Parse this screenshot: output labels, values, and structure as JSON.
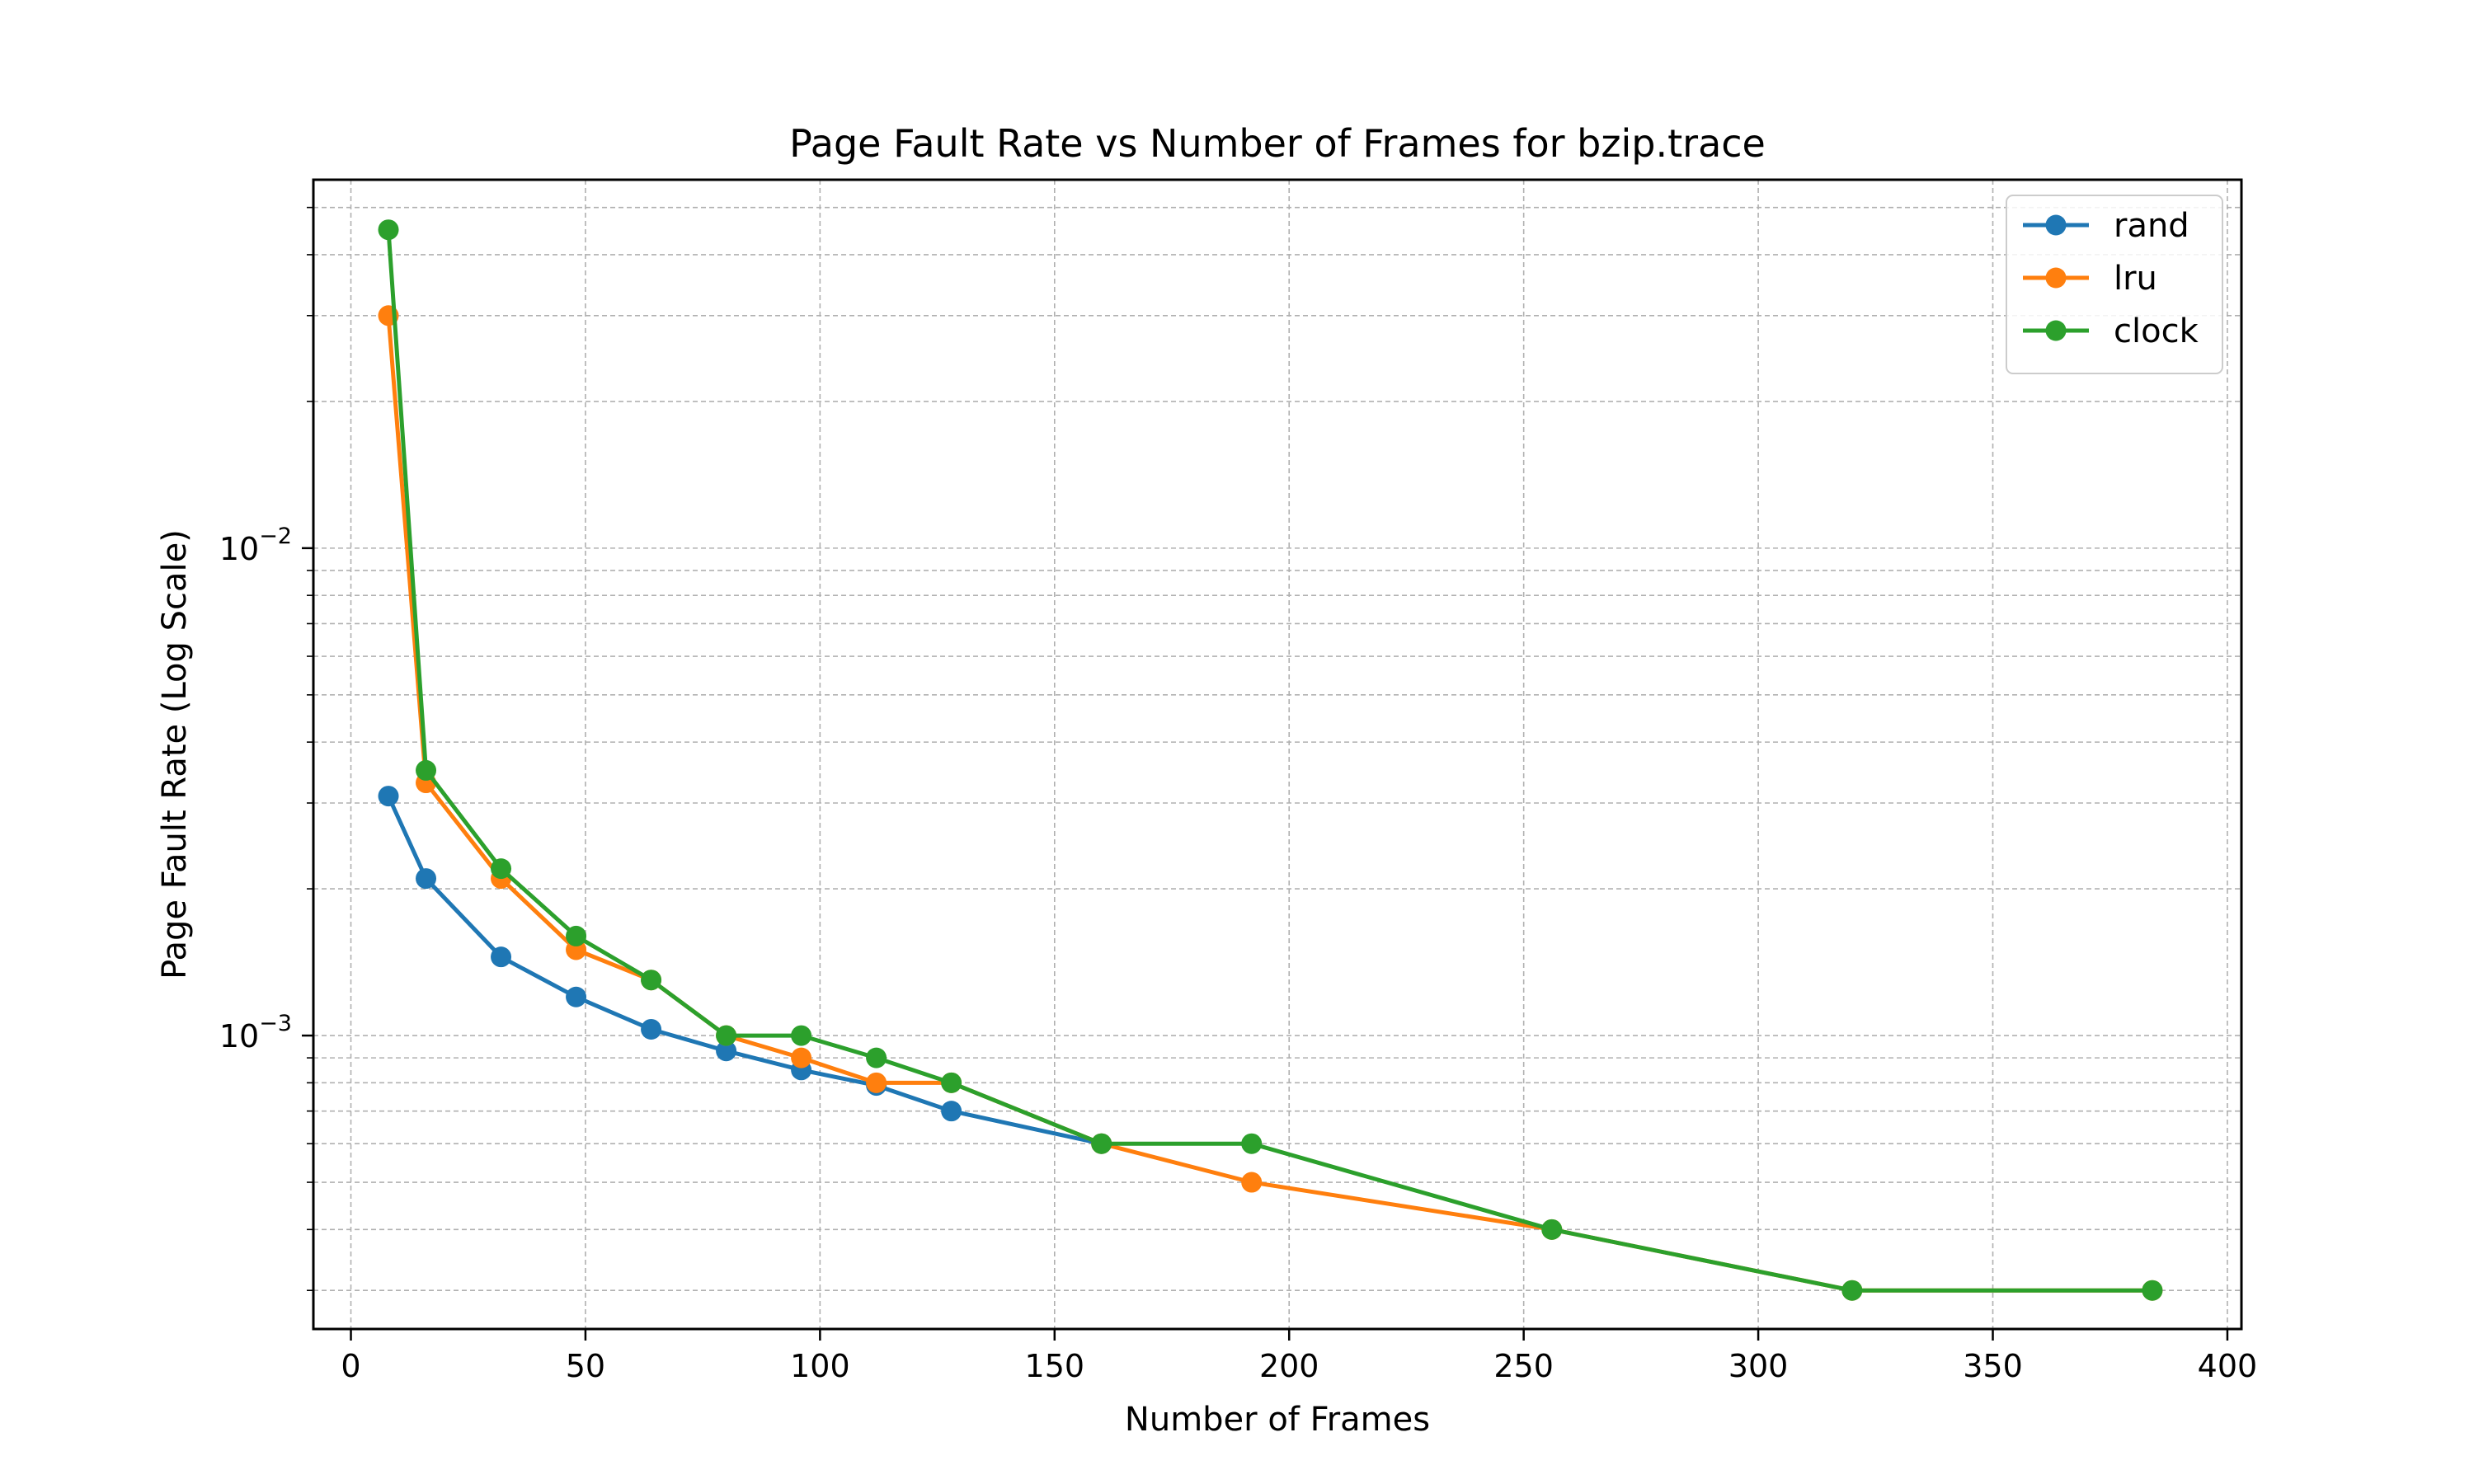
{
  "chart_data": {
    "type": "line",
    "title": "Page Fault Rate vs Number of Frames for bzip.trace",
    "xlabel": "Number of Frames",
    "ylabel": "Page Fault Rate (Log Scale)",
    "xlim": [
      -8,
      403
    ],
    "ylim": [
      0.00025,
      0.057
    ],
    "yscale": "log",
    "grid": true,
    "grid_minor_y": true,
    "legend_position": "top-right",
    "x_ticks": [
      0,
      50,
      100,
      150,
      200,
      250,
      300,
      350,
      400
    ],
    "y_ticks": [
      {
        "value": 0.001,
        "base": "10",
        "exp": "−3"
      },
      {
        "value": 0.01,
        "base": "10",
        "exp": "−2"
      }
    ],
    "series": [
      {
        "name": "rand",
        "color": "#1f77b4",
        "x": [
          8,
          16,
          32,
          48,
          64,
          80,
          96,
          112,
          128,
          160
        ],
        "y": [
          0.0031,
          0.0021,
          0.00145,
          0.0012,
          0.00103,
          0.00093,
          0.00085,
          0.00079,
          0.0007,
          0.0006
        ]
      },
      {
        "name": "lru",
        "color": "#ff7f0e",
        "x": [
          8,
          16,
          32,
          48,
          64,
          80,
          96,
          112,
          128,
          160,
          192,
          256,
          320,
          384
        ],
        "y": [
          0.03,
          0.0033,
          0.0021,
          0.0015,
          0.0013,
          0.001,
          0.0009,
          0.0008,
          0.0008,
          0.0006,
          0.0005,
          0.0004,
          0.0003,
          0.0003
        ]
      },
      {
        "name": "clock",
        "color": "#2ca02c",
        "x": [
          8,
          16,
          32,
          48,
          64,
          80,
          96,
          112,
          128,
          160,
          192,
          256,
          320,
          384
        ],
        "y": [
          0.045,
          0.0035,
          0.0022,
          0.0016,
          0.0013,
          0.001,
          0.001,
          0.0009,
          0.0008,
          0.0006,
          0.0006,
          0.0004,
          0.0003,
          0.0003
        ]
      }
    ]
  }
}
